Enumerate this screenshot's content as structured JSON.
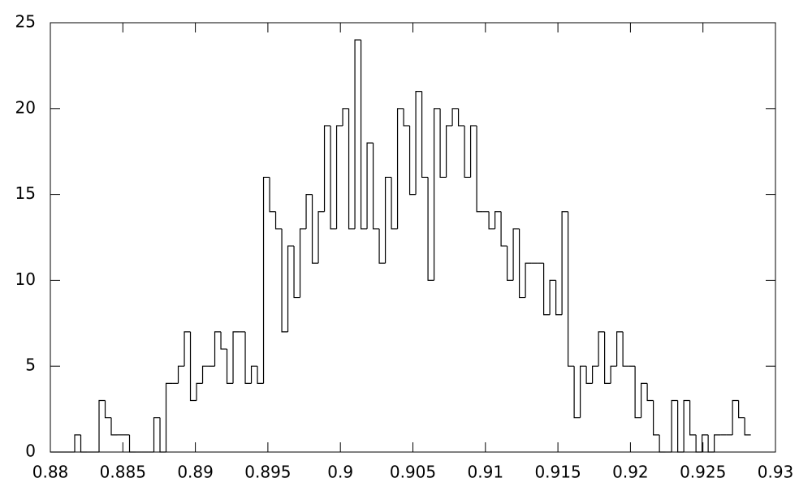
{
  "chart_data": {
    "type": "histogram",
    "bins": [
      0.88,
      0.88042,
      0.88084,
      0.88126,
      0.88168,
      0.8821,
      0.88252,
      0.88294,
      0.88336,
      0.88378,
      0.8842,
      0.88462,
      0.88504,
      0.88546,
      0.88588,
      0.8863,
      0.88672,
      0.88714,
      0.88756,
      0.88798,
      0.8884,
      0.88882,
      0.88924,
      0.88966,
      0.89008,
      0.8905,
      0.89092,
      0.89134,
      0.89176,
      0.89218,
      0.8926,
      0.89302,
      0.89344,
      0.89386,
      0.89428,
      0.8947,
      0.89512,
      0.89554,
      0.89596,
      0.89638,
      0.8968,
      0.89722,
      0.89764,
      0.89806,
      0.89848,
      0.8989,
      0.89932,
      0.89974,
      0.90016,
      0.90058,
      0.901,
      0.90142,
      0.90184,
      0.90226,
      0.90268,
      0.9031,
      0.90352,
      0.90394,
      0.90436,
      0.90478,
      0.9052,
      0.90562,
      0.90604,
      0.90646,
      0.90688,
      0.9073,
      0.90772,
      0.90814,
      0.90856,
      0.90898,
      0.9094,
      0.90982,
      0.91024,
      0.91066,
      0.91108,
      0.9115,
      0.91192,
      0.91234,
      0.91276,
      0.91318,
      0.9136,
      0.91402,
      0.91444,
      0.91486,
      0.91528,
      0.9157,
      0.91612,
      0.91654,
      0.91696,
      0.91738,
      0.9178,
      0.91822,
      0.91864,
      0.91906,
      0.91948,
      0.9199,
      0.92032,
      0.92074,
      0.92116,
      0.92158,
      0.922,
      0.92242,
      0.92284,
      0.92326,
      0.92368,
      0.9241,
      0.92452,
      0.92494,
      0.92536,
      0.92578,
      0.9262,
      0.92662,
      0.92704,
      0.92746,
      0.92788,
      0.9283
    ],
    "values": [
      0,
      0,
      0,
      0,
      1,
      0,
      0,
      0,
      3,
      2,
      1,
      1,
      1,
      0,
      0,
      0,
      0,
      2,
      0,
      4,
      4,
      5,
      7,
      3,
      4,
      5,
      5,
      7,
      6,
      4,
      7,
      7,
      4,
      5,
      4,
      16,
      14,
      13,
      7,
      12,
      9,
      13,
      15,
      11,
      14,
      19,
      13,
      19,
      20,
      13,
      24,
      13,
      18,
      13,
      11,
      16,
      13,
      20,
      19,
      15,
      21,
      16,
      10,
      20,
      16,
      19,
      20,
      19,
      16,
      19,
      14,
      14,
      13,
      14,
      12,
      10,
      13,
      9,
      11,
      11,
      11,
      8,
      10,
      8,
      14,
      5,
      2,
      5,
      4,
      5,
      7,
      4,
      5,
      7,
      5,
      5,
      2,
      4,
      3,
      1,
      0,
      0,
      3,
      0,
      3,
      1,
      0,
      1,
      0,
      1,
      1,
      1,
      3,
      2,
      1
    ],
    "color": "#000000",
    "xlim": [
      0.88,
      0.93
    ],
    "xticks": [
      0.88,
      0.885,
      0.89,
      0.895,
      0.9,
      0.905,
      0.91,
      0.915,
      0.92,
      0.925,
      0.93
    ],
    "ylim": [
      0,
      25
    ],
    "yticks": [
      0,
      5,
      10,
      15,
      20,
      25
    ]
  }
}
